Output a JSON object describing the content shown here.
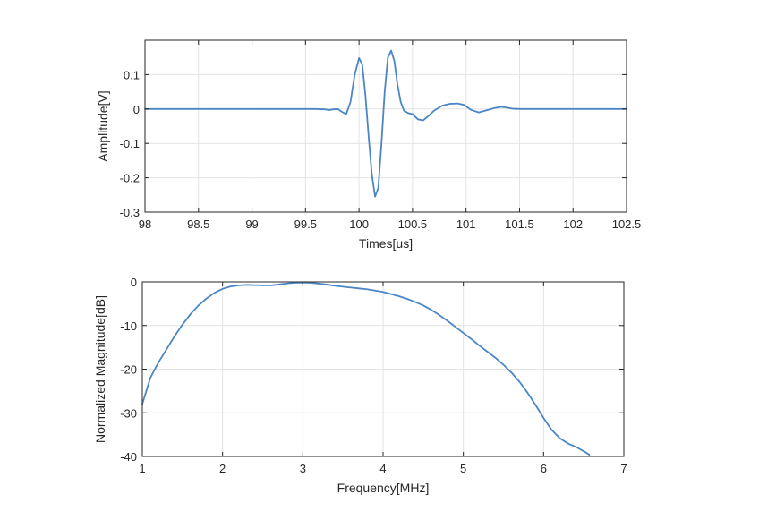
{
  "colors": {
    "series": "#4a86c5",
    "axis": "#262626",
    "grid": "#e3e3e3"
  },
  "chart_data": [
    {
      "type": "line",
      "title": "",
      "xlabel": "Times[us]",
      "ylabel": "Amplitude[V]",
      "xlim": [
        98,
        102.5
      ],
      "ylim": [
        -0.3,
        0.2
      ],
      "xticks": [
        98,
        98.5,
        99,
        99.5,
        100,
        100.5,
        101,
        101.5,
        102,
        102.5
      ],
      "xtick_labels": [
        "98",
        "98.5",
        "99",
        "99.5",
        "100",
        "100.5",
        "101",
        "101.5",
        "102",
        "102.5"
      ],
      "yticks": [
        -0.3,
        -0.2,
        -0.1,
        0,
        0.1
      ],
      "ytick_labels": [
        "-0.3",
        "-0.2",
        "-0.1",
        "0",
        "0.1"
      ],
      "grid": true,
      "series": [
        {
          "x": [
            98,
            99.6,
            99.68,
            99.72,
            99.76,
            99.8,
            99.84,
            99.88,
            99.92,
            99.96,
            100.0,
            100.03,
            100.06,
            100.09,
            100.12,
            100.15,
            100.18,
            100.21,
            100.24,
            100.27,
            100.3,
            100.33,
            100.36,
            100.39,
            100.42,
            100.46,
            100.5,
            100.55,
            100.6,
            100.65,
            100.7,
            100.78,
            100.85,
            100.92,
            100.98,
            101.05,
            101.12,
            101.2,
            101.27,
            101.33,
            101.38,
            101.43,
            101.5,
            101.6,
            101.8,
            102.5
          ],
          "y": [
            0,
            0,
            -0.001,
            -0.003,
            -0.001,
            0.0,
            -0.008,
            -0.015,
            0.02,
            0.1,
            0.148,
            0.13,
            0.04,
            -0.08,
            -0.19,
            -0.255,
            -0.23,
            -0.1,
            0.05,
            0.15,
            0.17,
            0.14,
            0.07,
            0.02,
            -0.005,
            -0.012,
            -0.015,
            -0.03,
            -0.033,
            -0.02,
            -0.005,
            0.01,
            0.015,
            0.016,
            0.012,
            -0.003,
            -0.01,
            -0.003,
            0.003,
            0.006,
            0.004,
            0.001,
            0.0,
            0.0,
            0.0,
            0
          ]
        }
      ]
    },
    {
      "type": "line",
      "title": "",
      "xlabel": "Frequency[MHz]",
      "ylabel": "Normalized Magnitude[dB]",
      "xlim": [
        1,
        7
      ],
      "ylim": [
        -40,
        0
      ],
      "xticks": [
        1,
        2,
        3,
        4,
        5,
        6,
        7
      ],
      "xtick_labels": [
        "1",
        "2",
        "3",
        "4",
        "5",
        "6",
        "7"
      ],
      "yticks": [
        -40,
        -30,
        -20,
        -10,
        0
      ],
      "ytick_labels": [
        "-40",
        "-30",
        "-20",
        "-10",
        "0"
      ],
      "grid": true,
      "series": [
        {
          "x": [
            1.0,
            1.1,
            1.2,
            1.3,
            1.4,
            1.5,
            1.6,
            1.7,
            1.8,
            1.9,
            2.0,
            2.1,
            2.2,
            2.3,
            2.4,
            2.5,
            2.6,
            2.7,
            2.8,
            2.9,
            3.0,
            3.1,
            3.2,
            3.3,
            3.4,
            3.5,
            3.6,
            3.7,
            3.8,
            3.9,
            4.0,
            4.1,
            4.2,
            4.3,
            4.4,
            4.5,
            4.6,
            4.7,
            4.8,
            4.9,
            5.0,
            5.1,
            5.2,
            5.3,
            5.4,
            5.5,
            5.6,
            5.7,
            5.8,
            5.9,
            6.0,
            6.1,
            6.2,
            6.3,
            6.4,
            6.5,
            6.57
          ],
          "y": [
            -28,
            -22,
            -18.5,
            -15.5,
            -12.5,
            -9.8,
            -7.4,
            -5.4,
            -3.8,
            -2.5,
            -1.6,
            -1.05,
            -0.8,
            -0.7,
            -0.75,
            -0.8,
            -0.8,
            -0.6,
            -0.35,
            -0.2,
            -0.15,
            -0.2,
            -0.4,
            -0.6,
            -0.9,
            -1.1,
            -1.3,
            -1.5,
            -1.7,
            -2.0,
            -2.3,
            -2.8,
            -3.3,
            -3.9,
            -4.6,
            -5.4,
            -6.4,
            -7.6,
            -8.9,
            -10.3,
            -11.7,
            -13.1,
            -14.6,
            -16.0,
            -17.4,
            -19.0,
            -20.8,
            -22.9,
            -25.4,
            -28.2,
            -31.2,
            -33.9,
            -35.8,
            -37.0,
            -37.8,
            -38.8,
            -39.6
          ]
        }
      ]
    }
  ]
}
